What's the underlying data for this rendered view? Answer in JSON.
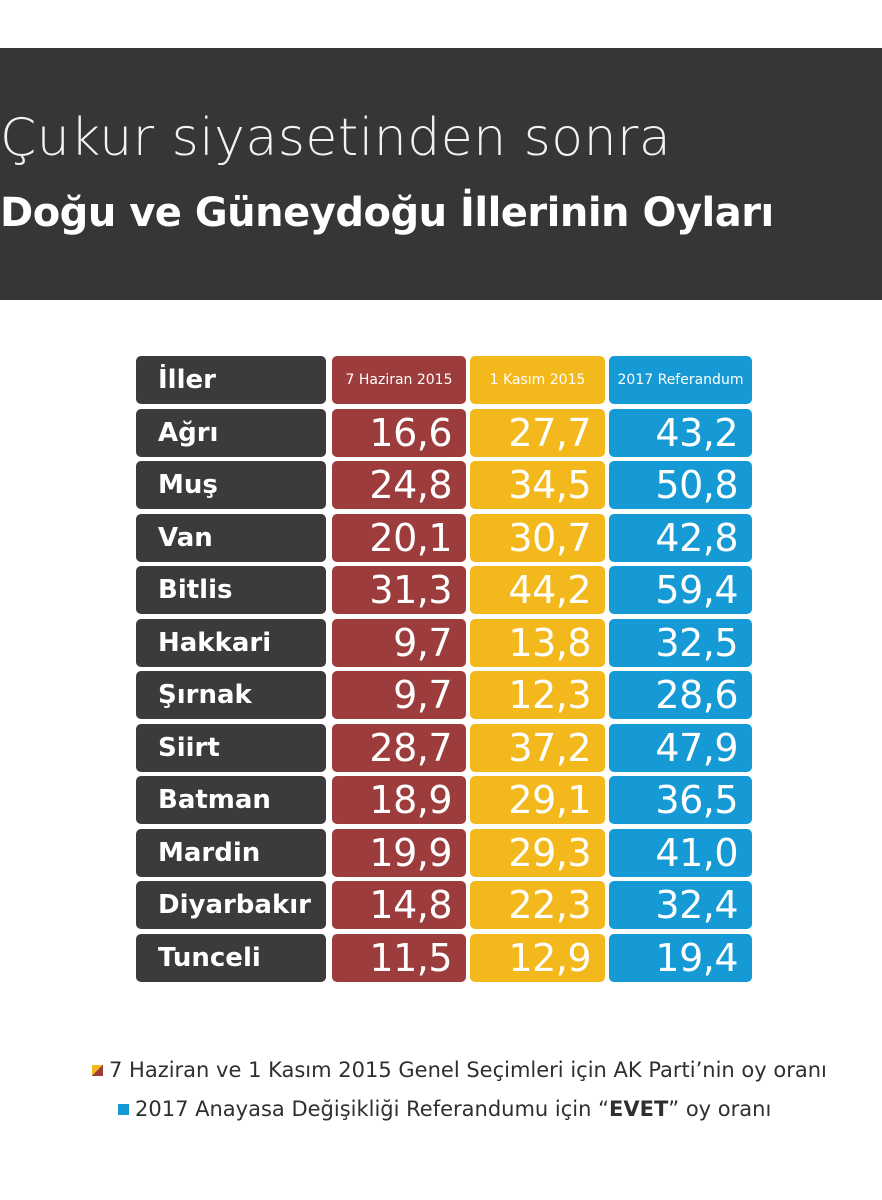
{
  "title": "Çukur siyasetinden sonra",
  "subtitle": "Doğu ve Güneydoğu İllerinin Oyları",
  "colors": {
    "header_bg": "#373536",
    "city": "#3c3a3b",
    "haziran": "#9d3c3c",
    "kasim": "#f3b81b",
    "referandum": "#159ad6"
  },
  "chart_data": {
    "type": "table",
    "columns": [
      "İller",
      "7 Haziran 2015",
      "1 Kasım 2015",
      "2017 Referandum"
    ],
    "rows": [
      {
        "city": "Ağrı",
        "values": [
          "16,6",
          "27,7",
          "43,2"
        ]
      },
      {
        "city": "Muş",
        "values": [
          "24,8",
          "34,5",
          "50,8"
        ]
      },
      {
        "city": "Van",
        "values": [
          "20,1",
          "30,7",
          "42,8"
        ]
      },
      {
        "city": "Bitlis",
        "values": [
          "31,3",
          "44,2",
          "59,4"
        ]
      },
      {
        "city": "Hakkari",
        "values": [
          "9,7",
          "13,8",
          "32,5"
        ]
      },
      {
        "city": "Şırnak",
        "values": [
          "9,7",
          "12,3",
          "28,6"
        ]
      },
      {
        "city": "Siirt",
        "values": [
          "28,7",
          "37,2",
          "47,9"
        ]
      },
      {
        "city": "Batman",
        "values": [
          "18,9",
          "29,1",
          "36,5"
        ]
      },
      {
        "city": "Mardin",
        "values": [
          "19,9",
          "29,3",
          "41,0"
        ]
      },
      {
        "city": "Diyarbakır",
        "values": [
          "14,8",
          "22,3",
          "32,4"
        ]
      },
      {
        "city": "Tunceli",
        "values": [
          "11,5",
          "12,9",
          "19,4"
        ]
      }
    ]
  },
  "legend": {
    "line1": "7 Haziran ve 1 Kasım 2015 Genel Seçimleri için AK Parti’nin oy oranı",
    "line2_before": "2017 Anayasa Değişikliği Referandumu için “",
    "line2_bold": "EVET",
    "line2_after": "” oy oranı"
  }
}
